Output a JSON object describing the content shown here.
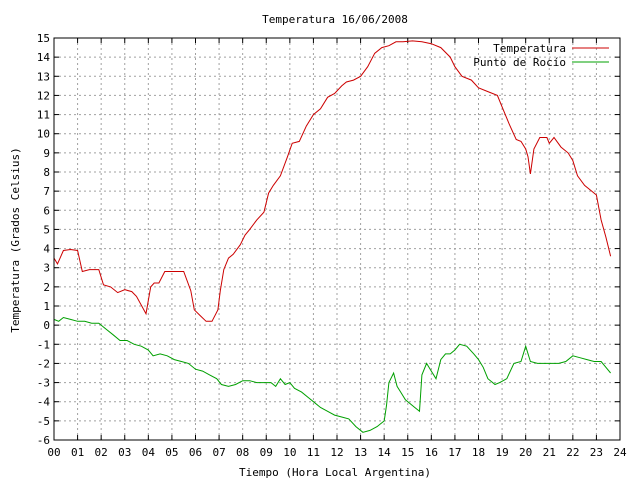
{
  "chart_data": {
    "type": "line",
    "title": "Temperatura 16/06/2008",
    "xlabel": "Tiempo (Hora Local Argentina)",
    "ylabel": "Temperatura (Grados Celsius)",
    "xlim": [
      0,
      24
    ],
    "ylim": [
      -6,
      15
    ],
    "x_ticks": [
      "00",
      "01",
      "02",
      "03",
      "04",
      "05",
      "06",
      "07",
      "08",
      "09",
      "10",
      "11",
      "12",
      "13",
      "14",
      "15",
      "16",
      "17",
      "18",
      "19",
      "20",
      "21",
      "22",
      "23",
      "24"
    ],
    "y_ticks": [
      "-6",
      "-5",
      "-4",
      "-3",
      "-2",
      "-1",
      "0",
      "1",
      "2",
      "3",
      "4",
      "5",
      "6",
      "7",
      "8",
      "9",
      "10",
      "11",
      "12",
      "13",
      "14",
      "15"
    ],
    "grid": true,
    "legend_position": "top-right",
    "series": [
      {
        "name": "Temperatura",
        "color": "#cc0000",
        "x": [
          0.0,
          0.15,
          0.4,
          0.7,
          1.0,
          1.2,
          1.5,
          1.9,
          2.1,
          2.4,
          2.7,
          3.0,
          3.3,
          3.5,
          3.9,
          4.1,
          4.25,
          4.45,
          4.7,
          4.9,
          5.1,
          5.5,
          5.8,
          5.95,
          6.2,
          6.45,
          6.7,
          6.95,
          7.05,
          7.2,
          7.4,
          7.6,
          7.9,
          8.1,
          8.3,
          8.6,
          8.9,
          9.1,
          9.3,
          9.6,
          9.9,
          10.1,
          10.4,
          10.7,
          11.0,
          11.3,
          11.6,
          11.9,
          12.2,
          12.4,
          12.7,
          13.0,
          13.3,
          13.6,
          13.9,
          14.2,
          14.5,
          14.8,
          15.2,
          15.6,
          16.0,
          16.4,
          16.8,
          17.0,
          17.3,
          17.7,
          18.0,
          18.4,
          18.8,
          19.0,
          19.3,
          19.6,
          19.8,
          20.0,
          20.1,
          20.2,
          20.35,
          20.6,
          20.9,
          21.0,
          21.2,
          21.5,
          21.8,
          22.0,
          22.2,
          22.5,
          22.8,
          23.0,
          23.2,
          23.4,
          23.6
        ],
        "values": [
          3.5,
          3.2,
          3.9,
          3.95,
          3.9,
          2.8,
          2.9,
          2.9,
          2.1,
          2.0,
          1.7,
          1.85,
          1.75,
          1.5,
          0.6,
          2.0,
          2.2,
          2.2,
          2.8,
          2.8,
          2.8,
          2.8,
          1.8,
          0.8,
          0.5,
          0.2,
          0.2,
          0.8,
          1.8,
          2.9,
          3.5,
          3.7,
          4.2,
          4.7,
          5.0,
          5.5,
          5.9,
          6.9,
          7.3,
          7.8,
          8.8,
          9.5,
          9.6,
          10.4,
          11.0,
          11.3,
          11.9,
          12.1,
          12.5,
          12.7,
          12.8,
          13.0,
          13.5,
          14.2,
          14.5,
          14.6,
          14.8,
          14.8,
          14.85,
          14.8,
          14.7,
          14.5,
          14.0,
          13.5,
          13.0,
          12.8,
          12.4,
          12.2,
          12.0,
          11.4,
          10.5,
          9.7,
          9.6,
          9.2,
          8.8,
          7.9,
          9.2,
          9.8,
          9.8,
          9.5,
          9.8,
          9.3,
          9.0,
          8.6,
          7.8,
          7.3,
          7.0,
          6.8,
          5.5,
          4.6,
          3.6
        ]
      },
      {
        "name": "Punto de Rocío",
        "color": "#00a000",
        "x": [
          0.0,
          0.2,
          0.4,
          0.7,
          1.0,
          1.3,
          1.6,
          1.9,
          2.2,
          2.5,
          2.8,
          3.1,
          3.4,
          3.7,
          4.0,
          4.2,
          4.5,
          4.8,
          5.1,
          5.4,
          5.7,
          6.0,
          6.3,
          6.6,
          6.9,
          7.1,
          7.4,
          7.7,
          8.0,
          8.3,
          8.6,
          8.9,
          9.2,
          9.4,
          9.6,
          9.8,
          10.0,
          10.2,
          10.5,
          10.8,
          11.0,
          11.3,
          11.6,
          11.9,
          12.2,
          12.5,
          12.8,
          13.1,
          13.4,
          13.7,
          14.0,
          14.1,
          14.2,
          14.4,
          14.55,
          14.7,
          14.9,
          15.1,
          15.3,
          15.5,
          15.6,
          15.8,
          16.0,
          16.2,
          16.4,
          16.6,
          16.8,
          17.0,
          17.2,
          17.5,
          17.8,
          18.0,
          18.2,
          18.4,
          18.7,
          18.9,
          19.2,
          19.5,
          19.8,
          20.0,
          20.2,
          20.5,
          20.8,
          21.1,
          21.4,
          21.7,
          22.0,
          22.3,
          22.6,
          22.9,
          23.2,
          23.4,
          23.6
        ],
        "values": [
          0.3,
          0.2,
          0.4,
          0.3,
          0.2,
          0.2,
          0.1,
          0.1,
          -0.2,
          -0.5,
          -0.8,
          -0.8,
          -1.0,
          -1.1,
          -1.3,
          -1.6,
          -1.5,
          -1.6,
          -1.8,
          -1.9,
          -2.0,
          -2.3,
          -2.4,
          -2.6,
          -2.8,
          -3.1,
          -3.2,
          -3.1,
          -2.9,
          -2.9,
          -3.0,
          -3.0,
          -3.0,
          -3.2,
          -2.8,
          -3.1,
          -3.0,
          -3.3,
          -3.5,
          -3.8,
          -4.0,
          -4.3,
          -4.5,
          -4.7,
          -4.8,
          -4.9,
          -5.3,
          -5.6,
          -5.5,
          -5.3,
          -5.0,
          -4.2,
          -3.0,
          -2.5,
          -3.2,
          -3.5,
          -3.9,
          -4.1,
          -4.3,
          -4.5,
          -2.6,
          -2.0,
          -2.4,
          -2.8,
          -1.8,
          -1.5,
          -1.5,
          -1.3,
          -1.0,
          -1.1,
          -1.5,
          -1.8,
          -2.2,
          -2.8,
          -3.1,
          -3.0,
          -2.8,
          -2.0,
          -1.9,
          -1.1,
          -1.9,
          -2.0,
          -2.0,
          -2.0,
          -2.0,
          -1.9,
          -1.6,
          -1.7,
          -1.8,
          -1.9,
          -1.9,
          -2.2,
          -2.5
        ]
      }
    ]
  }
}
